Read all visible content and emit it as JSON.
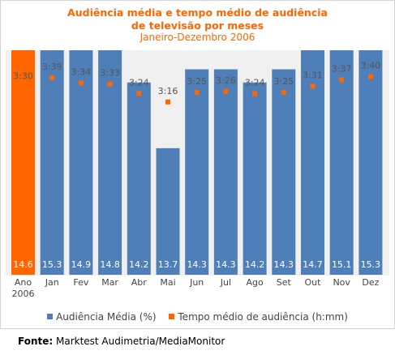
{
  "chart_data": {
    "type": "bar",
    "title_line1": "Audiência média e tempo médio de audiência",
    "title_line2": "de televisão por meses",
    "subtitle": "Janeiro-Dezembro 2006",
    "categories": [
      "Ano\n2006",
      "Jan",
      "Fev",
      "Mar",
      "Abr",
      "Mai",
      "Jun",
      "Jul",
      "Ago",
      "Set",
      "Out",
      "Nov",
      "Dez"
    ],
    "series": [
      {
        "name": "Audiência Média (%)",
        "type": "bar",
        "color": "#4f7fb8",
        "highlight_color": "#ff6600",
        "highlight_index": 0,
        "values": [
          14.6,
          15.3,
          14.9,
          14.8,
          14.2,
          13.7,
          14.3,
          14.3,
          14.2,
          14.3,
          14.7,
          15.1,
          15.3
        ],
        "labels": [
          "14.6",
          "15.3",
          "14.9",
          "14.8",
          "14.2",
          "13.7",
          "14.3",
          "14.3",
          "14.2",
          "14.3",
          "14.7",
          "15.1",
          "15.3"
        ]
      },
      {
        "name": "Tempo médio de audiência (h:mm)",
        "type": "marker",
        "color": "#ff6600",
        "values_minutes": [
          210,
          219,
          214,
          213,
          204,
          196,
          205,
          206,
          204,
          205,
          211,
          217,
          220
        ],
        "labels": [
          "3:30",
          "3:39",
          "3:34",
          "3:33",
          "3:24",
          "3:16",
          "3:25",
          "3:26",
          "3:24",
          "3:25",
          "3:31",
          "3:37",
          "3:40"
        ]
      }
    ],
    "legend_position": "bottom",
    "grid": false
  },
  "source": {
    "label": "Fonte:",
    "text": " Marktest Audimetria/MediaMonitor"
  },
  "colors": {
    "plot_background": "#f0f0f0",
    "title": "#ff6600",
    "axis_text": "#444444"
  }
}
